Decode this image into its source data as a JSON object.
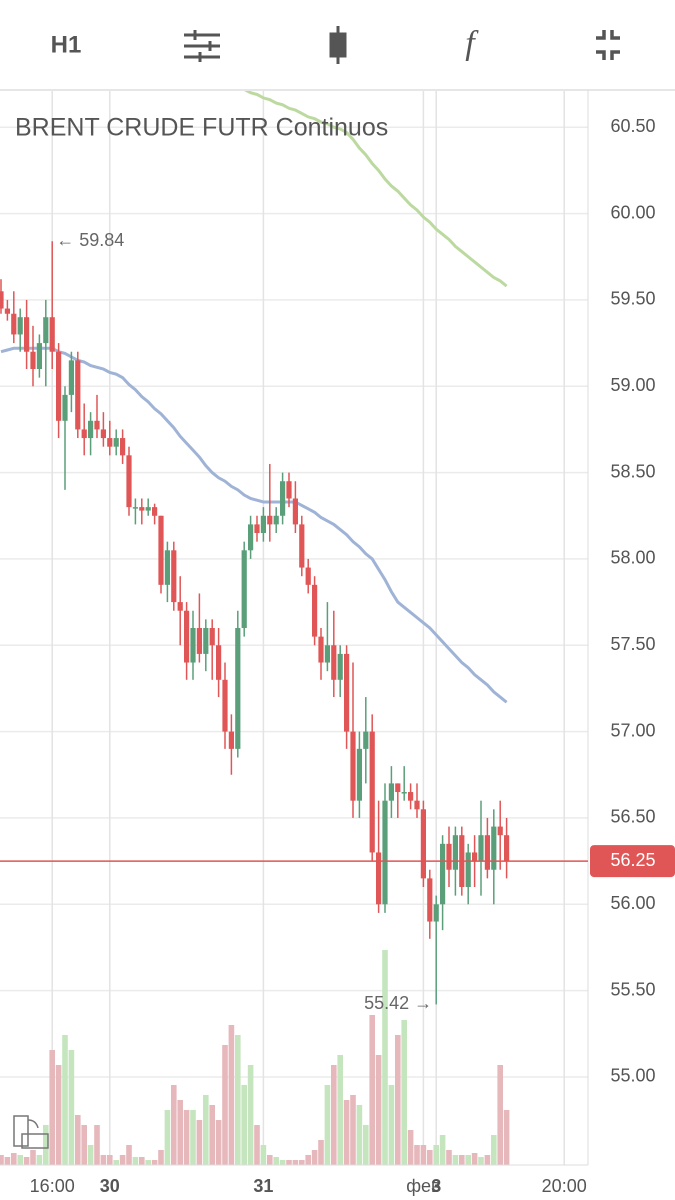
{
  "toolbar": {
    "timeframe": "H1",
    "function_label": "f"
  },
  "chart_data": {
    "type": "candlestick",
    "title": "BRENT CRUDE FUTR Continuos",
    "categories": [
      null,
      null,
      null,
      null,
      null,
      null,
      null,
      null,
      "16:00",
      null,
      null,
      null,
      null,
      null,
      null,
      null,
      null,
      "30",
      null,
      null,
      null,
      null,
      null,
      null,
      null,
      null,
      null,
      null,
      null,
      null,
      null,
      null,
      null,
      null,
      null,
      null,
      null,
      null,
      null,
      null,
      null,
      "31",
      null,
      null,
      null,
      null,
      null,
      null,
      null,
      null,
      null,
      null,
      null,
      null,
      null,
      null,
      null,
      null,
      null,
      null,
      null,
      null,
      null,
      null,
      null,
      null,
      "фев",
      null,
      "3",
      null,
      null,
      null,
      null,
      null,
      null,
      null,
      null,
      null,
      null,
      null,
      null,
      null,
      null,
      null,
      null,
      null,
      null,
      null,
      "20:00"
    ],
    "open": [
      59.55,
      59.45,
      59.42,
      59.3,
      59.4,
      59.2,
      59.1,
      59.25,
      59.4,
      59.2,
      58.8,
      58.95,
      59.15,
      58.75,
      58.7,
      58.8,
      58.75,
      58.7,
      58.65,
      58.7,
      58.6,
      58.3,
      58.3,
      58.28,
      58.3,
      58.25,
      57.85,
      58.05,
      57.75,
      57.7,
      57.4,
      57.6,
      57.45,
      57.6,
      57.5,
      57.3,
      57.0,
      56.9,
      57.6,
      58.05,
      58.2,
      58.15,
      58.25,
      58.2,
      58.25,
      58.45,
      58.35,
      58.2,
      57.95,
      57.85,
      57.55,
      57.4,
      57.5,
      57.3,
      57.45,
      57.0,
      56.6,
      56.9,
      57.0,
      56.3,
      56.0,
      56.6,
      56.7,
      56.65,
      56.65,
      56.6,
      56.55,
      56.15,
      55.9,
      56.0,
      56.35,
      56.2,
      56.4,
      56.1,
      56.3,
      56.25,
      56.4,
      56.2,
      56.45,
      56.4,
      null,
      null,
      null,
      null,
      null,
      null,
      null,
      null,
      null
    ],
    "high": [
      59.62,
      59.5,
      59.55,
      59.45,
      59.5,
      59.35,
      59.3,
      59.5,
      59.84,
      59.25,
      59.0,
      59.2,
      59.2,
      58.9,
      58.85,
      58.95,
      58.85,
      58.8,
      58.75,
      58.75,
      58.65,
      58.35,
      58.35,
      58.35,
      58.32,
      58.25,
      58.1,
      58.1,
      57.9,
      57.75,
      57.7,
      57.8,
      57.65,
      57.65,
      57.6,
      57.4,
      57.1,
      57.7,
      58.1,
      58.25,
      58.25,
      58.3,
      58.55,
      58.3,
      58.5,
      58.5,
      58.45,
      58.25,
      58.0,
      57.9,
      57.6,
      57.75,
      57.7,
      57.5,
      57.5,
      57.4,
      57.0,
      57.2,
      57.1,
      56.6,
      56.7,
      56.8,
      56.7,
      56.8,
      56.7,
      56.7,
      56.6,
      56.2,
      56.05,
      56.4,
      56.45,
      56.45,
      56.45,
      56.35,
      56.4,
      56.6,
      56.5,
      56.55,
      56.6,
      56.5,
      null,
      null,
      null,
      null,
      null,
      null,
      null,
      null,
      null
    ],
    "low": [
      59.42,
      59.38,
      59.25,
      59.2,
      59.1,
      59.0,
      59.05,
      59.0,
      59.1,
      58.7,
      58.4,
      58.85,
      58.7,
      58.6,
      58.6,
      58.7,
      58.65,
      58.6,
      58.6,
      58.55,
      58.25,
      58.2,
      58.2,
      58.25,
      58.2,
      57.8,
      57.75,
      57.7,
      57.5,
      57.3,
      57.3,
      57.4,
      57.35,
      57.3,
      57.2,
      56.9,
      56.75,
      56.85,
      57.55,
      58.0,
      58.1,
      58.1,
      58.1,
      58.15,
      58.2,
      58.3,
      58.15,
      57.9,
      57.8,
      57.5,
      57.3,
      57.35,
      57.2,
      57.2,
      56.9,
      56.5,
      56.5,
      56.7,
      56.25,
      55.95,
      55.95,
      56.5,
      56.5,
      56.6,
      56.55,
      56.5,
      56.1,
      55.8,
      55.42,
      55.85,
      56.1,
      56.05,
      56.05,
      56.0,
      56.1,
      56.05,
      56.15,
      56.0,
      56.2,
      56.15,
      null,
      null,
      null,
      null,
      null,
      null,
      null,
      null,
      null
    ],
    "close": [
      59.45,
      59.42,
      59.3,
      59.4,
      59.2,
      59.1,
      59.25,
      59.4,
      59.2,
      58.8,
      58.95,
      59.15,
      58.75,
      58.7,
      58.8,
      58.75,
      58.7,
      58.65,
      58.7,
      58.6,
      58.3,
      58.3,
      58.28,
      58.3,
      58.25,
      57.85,
      58.05,
      57.75,
      57.7,
      57.4,
      57.6,
      57.45,
      57.6,
      57.5,
      57.3,
      57.0,
      56.9,
      57.6,
      58.05,
      58.2,
      58.15,
      58.25,
      58.2,
      58.25,
      58.45,
      58.35,
      58.2,
      57.95,
      57.85,
      57.55,
      57.4,
      57.5,
      57.3,
      57.45,
      57.0,
      56.6,
      56.9,
      57.0,
      56.3,
      56.0,
      56.6,
      56.7,
      56.65,
      56.65,
      56.6,
      56.55,
      56.15,
      55.9,
      56.0,
      56.35,
      56.2,
      56.4,
      56.1,
      56.3,
      56.25,
      56.4,
      56.2,
      56.45,
      56.4,
      56.25,
      null,
      null,
      null,
      null,
      null,
      null,
      null,
      null,
      null
    ],
    "volume": [
      10,
      8,
      12,
      10,
      8,
      15,
      10,
      40,
      115,
      100,
      130,
      115,
      50,
      40,
      20,
      40,
      10,
      10,
      5,
      10,
      20,
      8,
      8,
      5,
      5,
      15,
      55,
      80,
      65,
      55,
      55,
      45,
      70,
      60,
      45,
      120,
      140,
      130,
      80,
      100,
      40,
      20,
      10,
      8,
      5,
      5,
      5,
      5,
      10,
      15,
      25,
      80,
      100,
      110,
      65,
      70,
      60,
      40,
      150,
      110,
      215,
      80,
      130,
      145,
      35,
      20,
      20,
      15,
      20,
      30,
      15,
      10,
      10,
      10,
      12,
      8,
      10,
      30,
      100,
      55,
      null,
      null,
      null,
      null,
      null,
      null,
      null,
      null,
      null
    ],
    "up_color": "#5a9f7a",
    "down_color": "#e05555",
    "up_volume_color": "#c5e5bf",
    "down_volume_color": "#e6b8bc",
    "series": [
      {
        "color": "#9fb3d6",
        "values": [
          59.2,
          59.21,
          59.22,
          59.22,
          59.22,
          59.22,
          59.22,
          59.22,
          59.22,
          59.2,
          59.19,
          59.17,
          59.15,
          59.14,
          59.12,
          59.11,
          59.1,
          59.08,
          59.07,
          59.05,
          59.01,
          58.98,
          58.94,
          58.91,
          58.87,
          58.84,
          58.8,
          58.76,
          58.71,
          58.67,
          58.63,
          58.59,
          58.54,
          58.5,
          58.47,
          58.45,
          58.42,
          58.4,
          58.37,
          58.35,
          58.34,
          58.33,
          58.33,
          58.33,
          58.33,
          58.33,
          58.33,
          58.31,
          58.29,
          58.27,
          58.24,
          58.22,
          58.2,
          58.17,
          58.14,
          58.1,
          58.07,
          58.03,
          58.0,
          57.94,
          57.88,
          57.81,
          57.75,
          57.72,
          57.69,
          57.66,
          57.63,
          57.6,
          57.56,
          57.52,
          57.48,
          57.44,
          57.4,
          57.37,
          57.33,
          57.3,
          57.27,
          57.23,
          57.2,
          57.17,
          null,
          null,
          null,
          null,
          null,
          null,
          null,
          null,
          null
        ]
      },
      {
        "color": "#bcd9a0",
        "values": [
          null,
          null,
          null,
          null,
          null,
          null,
          null,
          null,
          null,
          null,
          null,
          null,
          null,
          null,
          null,
          null,
          null,
          null,
          null,
          null,
          null,
          null,
          null,
          null,
          null,
          null,
          null,
          null,
          null,
          null,
          null,
          null,
          null,
          null,
          null,
          null,
          null,
          null,
          60.72,
          60.7,
          60.69,
          60.67,
          60.66,
          60.64,
          60.63,
          60.61,
          60.6,
          60.58,
          60.56,
          60.55,
          60.53,
          60.52,
          60.5,
          60.49,
          60.47,
          60.43,
          60.38,
          60.34,
          60.29,
          60.25,
          60.2,
          60.16,
          60.13,
          60.09,
          60.05,
          60.02,
          59.98,
          59.95,
          59.91,
          59.88,
          59.85,
          59.81,
          59.78,
          59.75,
          59.72,
          59.69,
          59.66,
          59.63,
          59.61,
          59.58,
          null,
          null,
          null,
          null,
          null,
          null,
          null,
          null,
          null
        ]
      }
    ],
    "ylim": [
      54.49,
      60.71
    ],
    "yticks": [
      {
        "value": 55,
        "label": "55.00"
      },
      {
        "value": 55.5,
        "label": "55.50"
      },
      {
        "value": 56,
        "label": "56.00"
      },
      {
        "value": 56.5,
        "label": "56.50"
      },
      {
        "value": 57,
        "label": "57.00"
      },
      {
        "value": 57.5,
        "label": "57.50"
      },
      {
        "value": 58,
        "label": "58.00"
      },
      {
        "value": 58.5,
        "label": "58.50"
      },
      {
        "value": 59,
        "label": "59.00"
      },
      {
        "value": 59.5,
        "label": "59.50"
      },
      {
        "value": 60,
        "label": "60.00"
      },
      {
        "value": 60.5,
        "label": "60.50"
      }
    ],
    "grid": true,
    "current_price": {
      "value": 56.25,
      "label": "56.25",
      "color": "#e05555"
    },
    "annotations": [
      {
        "text": "← 59.84",
        "value": 59.84,
        "index": 8,
        "side": "right"
      },
      {
        "text": "55.42 →",
        "value": 55.42,
        "index": 68,
        "side": "left"
      }
    ]
  }
}
